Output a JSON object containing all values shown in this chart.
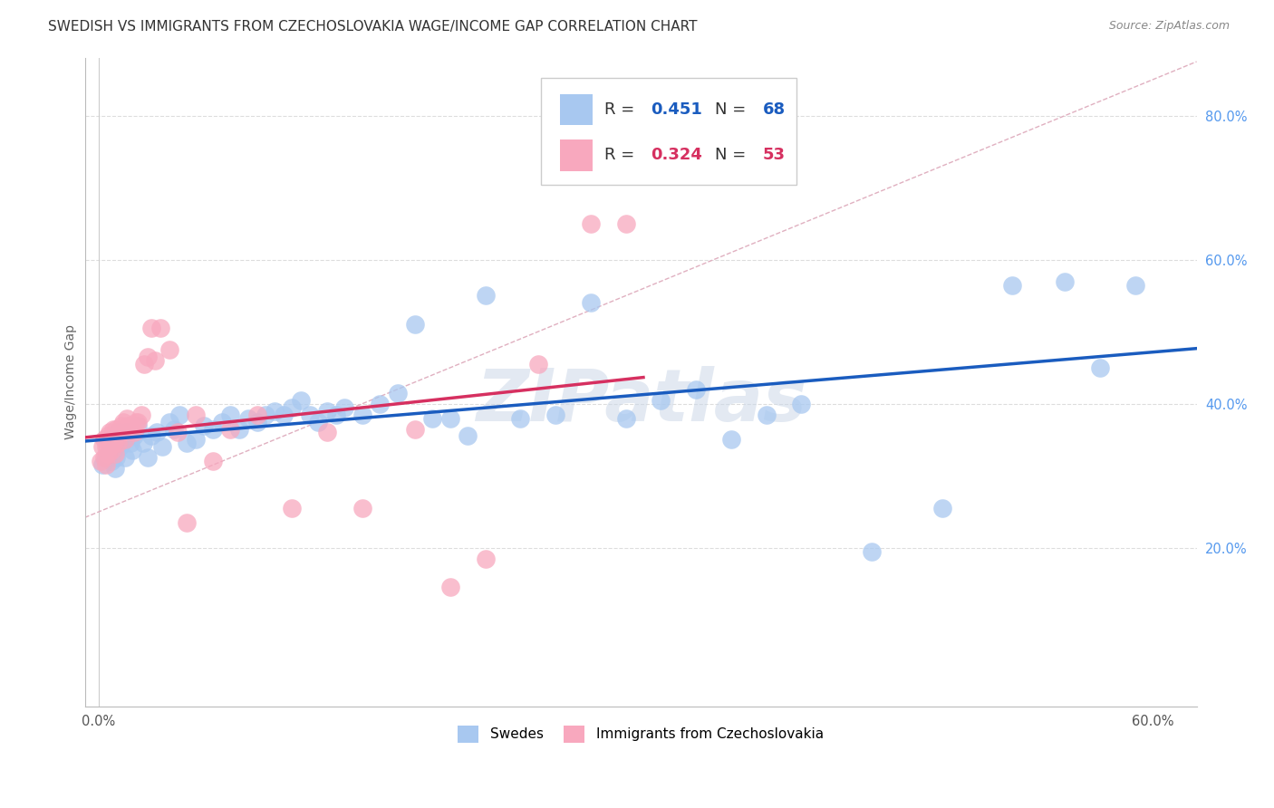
{
  "title": "SWEDISH VS IMMIGRANTS FROM CZECHOSLOVAKIA WAGE/INCOME GAP CORRELATION CHART",
  "source_text": "Source: ZipAtlas.com",
  "ylabel": "Wage/Income Gap",
  "xlim": [
    -0.008,
    0.625
  ],
  "ylim": [
    -0.02,
    0.88
  ],
  "x_ticks": [
    0.0,
    0.1,
    0.2,
    0.3,
    0.4,
    0.5,
    0.6
  ],
  "x_tick_labels": [
    "0.0%",
    "",
    "",
    "",
    "",
    "",
    "60.0%"
  ],
  "y_ticks": [
    0.2,
    0.4,
    0.6,
    0.8
  ],
  "y_tick_labels": [
    "20.0%",
    "40.0%",
    "60.0%",
    "80.0%"
  ],
  "swedes_color": "#a8c8f0",
  "immigrants_color": "#f8a8be",
  "swedes_line_color": "#1a5cbf",
  "immigrants_line_color": "#d63060",
  "ref_line_color": "#d0c0c8",
  "watermark_text": "ZIPatlas",
  "watermark_color": "#ccd8e8",
  "background_color": "#ffffff",
  "grid_color": "#dddddd",
  "legend_r1": "0.451",
  "legend_n1": "68",
  "legend_r2": "0.324",
  "legend_n2": "53",
  "swedes_x": [
    0.002,
    0.004,
    0.006,
    0.007,
    0.008,
    0.009,
    0.01,
    0.01,
    0.011,
    0.012,
    0.013,
    0.014,
    0.015,
    0.016,
    0.018,
    0.019,
    0.02,
    0.022,
    0.025,
    0.028,
    0.03,
    0.033,
    0.036,
    0.04,
    0.043,
    0.046,
    0.05,
    0.055,
    0.06,
    0.065,
    0.07,
    0.075,
    0.08,
    0.085,
    0.09,
    0.095,
    0.1,
    0.105,
    0.11,
    0.115,
    0.12,
    0.125,
    0.13,
    0.135,
    0.14,
    0.15,
    0.16,
    0.17,
    0.18,
    0.19,
    0.2,
    0.21,
    0.22,
    0.24,
    0.26,
    0.28,
    0.3,
    0.32,
    0.34,
    0.36,
    0.38,
    0.4,
    0.44,
    0.48,
    0.52,
    0.55,
    0.57,
    0.59
  ],
  "swedes_y": [
    0.315,
    0.325,
    0.33,
    0.32,
    0.335,
    0.31,
    0.35,
    0.325,
    0.36,
    0.34,
    0.345,
    0.355,
    0.325,
    0.36,
    0.345,
    0.335,
    0.355,
    0.37,
    0.345,
    0.325,
    0.355,
    0.36,
    0.34,
    0.375,
    0.365,
    0.385,
    0.345,
    0.35,
    0.37,
    0.365,
    0.375,
    0.385,
    0.365,
    0.38,
    0.375,
    0.385,
    0.39,
    0.385,
    0.395,
    0.405,
    0.385,
    0.375,
    0.39,
    0.385,
    0.395,
    0.385,
    0.4,
    0.415,
    0.51,
    0.38,
    0.38,
    0.355,
    0.55,
    0.38,
    0.385,
    0.54,
    0.38,
    0.405,
    0.42,
    0.35,
    0.385,
    0.4,
    0.195,
    0.255,
    0.565,
    0.57,
    0.45,
    0.565
  ],
  "immigrants_x": [
    0.001,
    0.002,
    0.003,
    0.003,
    0.004,
    0.004,
    0.005,
    0.005,
    0.006,
    0.006,
    0.007,
    0.007,
    0.008,
    0.008,
    0.009,
    0.009,
    0.01,
    0.01,
    0.011,
    0.012,
    0.013,
    0.013,
    0.014,
    0.015,
    0.016,
    0.017,
    0.018,
    0.019,
    0.02,
    0.021,
    0.022,
    0.024,
    0.026,
    0.028,
    0.03,
    0.032,
    0.035,
    0.04,
    0.045,
    0.05,
    0.055,
    0.065,
    0.075,
    0.09,
    0.11,
    0.13,
    0.15,
    0.18,
    0.2,
    0.22,
    0.25,
    0.28,
    0.3
  ],
  "immigrants_y": [
    0.32,
    0.34,
    0.35,
    0.325,
    0.34,
    0.315,
    0.355,
    0.33,
    0.36,
    0.34,
    0.35,
    0.335,
    0.365,
    0.345,
    0.355,
    0.33,
    0.365,
    0.35,
    0.345,
    0.36,
    0.37,
    0.36,
    0.375,
    0.35,
    0.38,
    0.37,
    0.37,
    0.365,
    0.36,
    0.375,
    0.375,
    0.385,
    0.455,
    0.465,
    0.505,
    0.46,
    0.505,
    0.475,
    0.36,
    0.235,
    0.385,
    0.32,
    0.365,
    0.385,
    0.255,
    0.36,
    0.255,
    0.365,
    0.145,
    0.185,
    0.455,
    0.65,
    0.65
  ],
  "title_fontsize": 11,
  "tick_fontsize": 10.5,
  "axis_label_fontsize": 10
}
